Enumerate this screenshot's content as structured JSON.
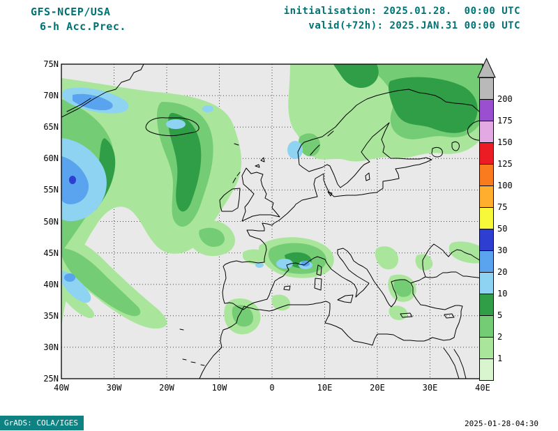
{
  "header": {
    "model": "GFS-NCEP/USA",
    "field": "6-h Acc.Prec.",
    "init_label": "initialisation: 2025.01.28.  00:00 UTC",
    "valid_label": "valid(+72h): 2025.JAN.31 00:00 UTC"
  },
  "map": {
    "lat_ticks": [
      "75N",
      "70N",
      "65N",
      "60N",
      "55N",
      "50N",
      "45N",
      "40N",
      "35N",
      "30N",
      "25N"
    ],
    "lon_ticks": [
      "40W",
      "30W",
      "20W",
      "10W",
      "0",
      "10E",
      "20E",
      "30E",
      "40E"
    ]
  },
  "colorbar": {
    "labels_top_to_bottom": [
      "200",
      "175",
      "150",
      "125",
      "100",
      "75",
      "50",
      "30",
      "20",
      "10",
      "5",
      "2",
      "1"
    ],
    "segment_colors_top_to_bottom": [
      "#b9b9b9",
      "#9a4fd0",
      "#e2a9e2",
      "#ec1c24",
      "#f97b1d",
      "#ffae2e",
      "#f8f83a",
      "#2e3ed1",
      "#5aa3ee",
      "#8fd3f2",
      "#2f9e46",
      "#74cd74",
      "#a9e59b",
      "#d8f5cf"
    ]
  },
  "footer": {
    "credit": "GrADS: COLA/IGES",
    "timestamp": "2025-01-28-04:30"
  },
  "colors": {
    "header_text": "#007272",
    "axis_text": "#000000",
    "map_bg": "#e9e9e9",
    "footer_bg": "#0e8282",
    "footer_text": "#ffffff"
  },
  "chart_data": {
    "type": "heatmap",
    "title": "GFS-NCEP/USA 6-h accumulated precipitation, init 2025.01.28 00:00 UTC, valid(+72h) 2025.JAN.31 00:00 UTC",
    "region_lon_range": [
      "40W",
      "40E"
    ],
    "region_lat_range": [
      "25N",
      "75N"
    ],
    "legend_thresholds": [
      1,
      2,
      5,
      10,
      20,
      30,
      50,
      75,
      100,
      125,
      150,
      175,
      200
    ],
    "legend_position": "right"
  }
}
